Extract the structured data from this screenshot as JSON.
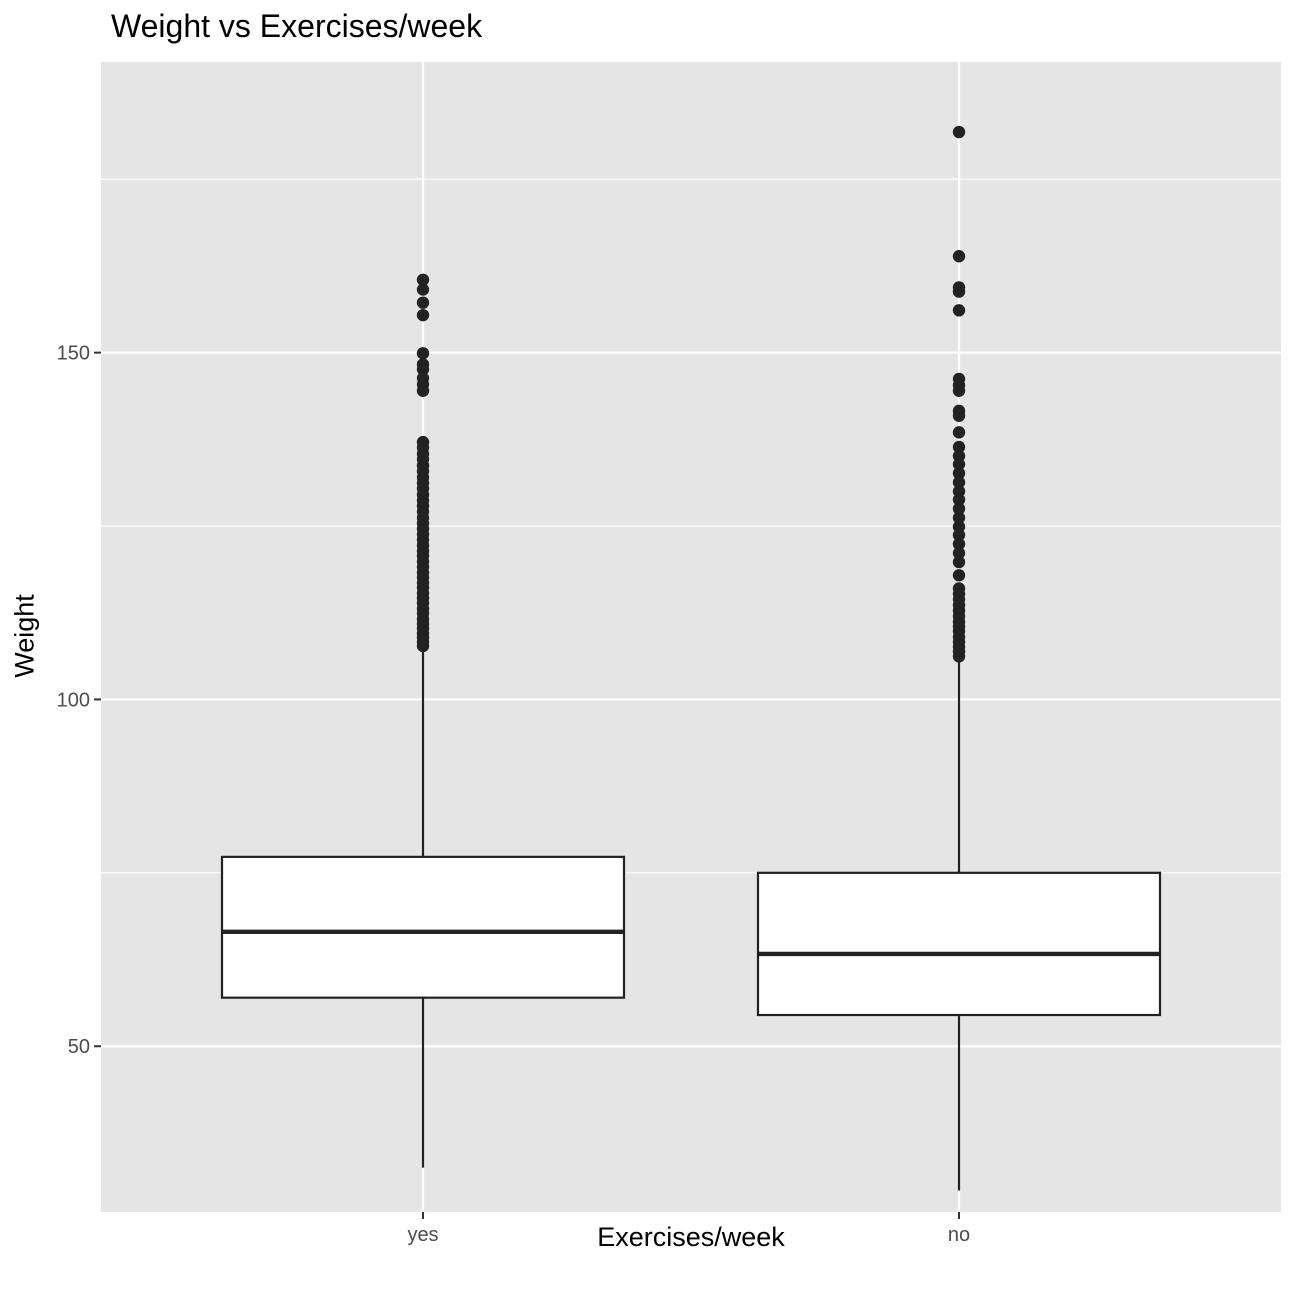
{
  "chart_data": {
    "type": "boxplot",
    "title": "Weight vs Exercises/week",
    "xlabel": "Exercises/week",
    "ylabel": "Weight",
    "categories": [
      "yes",
      "no"
    ],
    "ylim": [
      26.1,
      191.9
    ],
    "yticks": [
      50,
      100,
      150
    ],
    "grid": true,
    "legend": "none",
    "colors": {
      "panel": "#e5e5e5",
      "grid": "#ffffff",
      "box_fill": "#ffffff",
      "ink": "#222222",
      "tick_text": "#4d4d4d"
    },
    "boxes": [
      {
        "category": "yes",
        "whisker_low": 32.5,
        "q1": 57.0,
        "median": 66.5,
        "q3": 77.3,
        "whisker_high": 108.5,
        "outliers": [
          107.7,
          108.3,
          108.9,
          109.5,
          110.2,
          110.9,
          111.6,
          112.4,
          113.1,
          113.9,
          114.6,
          115.3,
          116.1,
          116.8,
          117.6,
          118.3,
          119.1,
          119.9,
          120.7,
          121.4,
          122.2,
          123.0,
          123.8,
          124.6,
          125.4,
          126.2,
          127.1,
          127.9,
          128.7,
          129.5,
          130.4,
          131.2,
          132.0,
          132.9,
          133.7,
          134.6,
          135.4,
          136.3,
          137.1,
          144.5,
          145.4,
          146.3,
          147.6,
          148.3,
          149.9,
          155.4,
          157.2,
          159.1,
          160.5
        ]
      },
      {
        "category": "no",
        "whisker_low": 29.2,
        "q1": 54.5,
        "median": 63.3,
        "q3": 75.0,
        "whisker_high": 106.0,
        "outliers": [
          106.2,
          106.9,
          107.6,
          108.3,
          109.0,
          109.8,
          110.5,
          111.2,
          112.0,
          112.8,
          113.6,
          114.4,
          115.2,
          116.0,
          117.9,
          119.8,
          121.1,
          122.4,
          123.7,
          124.9,
          126.2,
          127.5,
          128.8,
          130.0,
          131.3,
          132.6,
          133.9,
          135.1,
          136.4,
          138.5,
          140.9,
          141.6,
          144.5,
          145.3,
          146.2,
          156.1,
          158.8,
          159.4,
          163.9,
          181.8
        ]
      }
    ]
  }
}
